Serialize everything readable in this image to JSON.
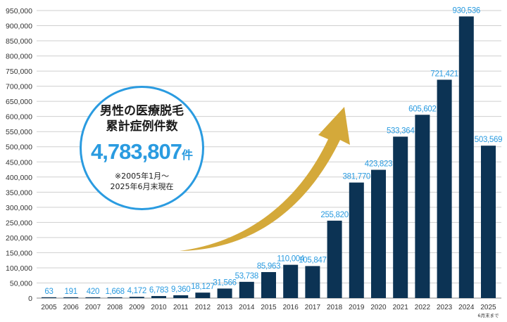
{
  "chart_data": {
    "type": "bar",
    "title": "",
    "xlabel": "",
    "ylabel": "",
    "ylim": [
      0,
      950000
    ],
    "y_ticks": [
      "0",
      "50,000",
      "100,000",
      "150,000",
      "200,000",
      "250,000",
      "300,000",
      "350,000",
      "400,000",
      "450,000",
      "500,000",
      "550,000",
      "600,000",
      "650,000",
      "700,000",
      "750,000",
      "800,000",
      "850,000",
      "900,000",
      "950,000"
    ],
    "categories": [
      "2005",
      "2006",
      "2007",
      "2008",
      "2009",
      "2010",
      "2011",
      "2012",
      "2013",
      "2014",
      "2015",
      "2016",
      "2017",
      "2018",
      "2019",
      "2020",
      "2021",
      "2022",
      "2023",
      "2024",
      "2025"
    ],
    "values": [
      63,
      191,
      420,
      1668,
      4172,
      6783,
      9360,
      18127,
      31566,
      53738,
      85963,
      110004,
      105847,
      255820,
      381770,
      423823,
      533364,
      605602,
      721421,
      930536,
      503569
    ],
    "value_labels": [
      "63",
      "191",
      "420",
      "1,668",
      "4,172",
      "6,783",
      "9,360",
      "18,127",
      "31,566",
      "53,738",
      "85,963",
      "110,004",
      "105,847",
      "255,820",
      "381,770",
      "423,823",
      "533,364",
      "605,602",
      "721,421",
      "930,536",
      "503,569"
    ],
    "last_category_note": "6月末まで",
    "colors": {
      "bar": "#0c3354",
      "label": "#2a9be0",
      "grid": "#cfcfcf",
      "arrow": "#d4a93a",
      "axis_text": "#333333"
    }
  },
  "callout": {
    "line1": "男性の医療脱毛",
    "line2": "累計症例件数",
    "total": "4,783,807",
    "unit": "件",
    "note1": "※2005年1月～",
    "note2": "2025年6月末現在"
  }
}
